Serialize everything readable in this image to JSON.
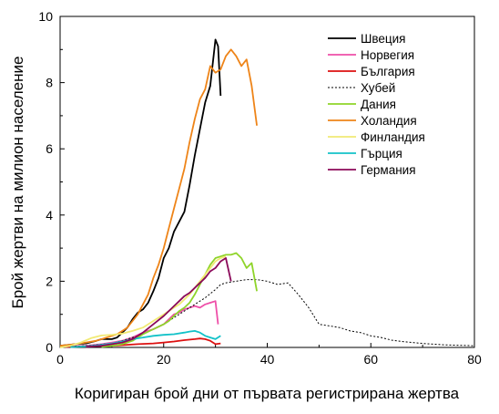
{
  "chart_data": {
    "type": "line",
    "xlabel": "Коригиран брой дни от първата регистрирана жертва",
    "ylabel": "Брой жертви на милион население",
    "xlim": [
      0,
      80
    ],
    "ylim": [
      0,
      10
    ],
    "xticks": [
      0,
      20,
      40,
      60,
      80
    ],
    "yticks": [
      0,
      2,
      4,
      6,
      8,
      10
    ],
    "grid": false,
    "legend": "top-right",
    "series": [
      {
        "name": "Швеция",
        "color": "#000000",
        "dash": "solid",
        "x": [
          0,
          3,
          5,
          7,
          8,
          10,
          11,
          12,
          13,
          14,
          15,
          16,
          17,
          18,
          19,
          20,
          21,
          22,
          23,
          24,
          25,
          26,
          27,
          28,
          29,
          30,
          30.5,
          31
        ],
        "y": [
          0.05,
          0.1,
          0.12,
          0.2,
          0.25,
          0.25,
          0.3,
          0.45,
          0.6,
          0.85,
          1.05,
          1.15,
          1.35,
          1.7,
          2.1,
          2.7,
          3.0,
          3.5,
          3.8,
          4.1,
          4.9,
          5.8,
          6.6,
          7.4,
          7.9,
          9.3,
          9.1,
          7.6
        ]
      },
      {
        "name": "Норвегия",
        "color": "#ee4fa8",
        "dash": "solid",
        "x": [
          1,
          5,
          8,
          10,
          12,
          14,
          16,
          18,
          20,
          21,
          22,
          23,
          24,
          25,
          26,
          27,
          28,
          29,
          30,
          30.5
        ],
        "y": [
          0.02,
          0.05,
          0.1,
          0.15,
          0.2,
          0.3,
          0.45,
          0.55,
          0.7,
          0.85,
          1.0,
          1.05,
          1.15,
          1.2,
          1.25,
          1.2,
          1.3,
          1.35,
          1.4,
          0.7
        ]
      },
      {
        "name": "България",
        "color": "#dd1111",
        "dash": "solid",
        "x": [
          1,
          5,
          10,
          13,
          15,
          18,
          20,
          22,
          24,
          26,
          27,
          28,
          29,
          30,
          31
        ],
        "y": [
          0.02,
          0.03,
          0.05,
          0.08,
          0.1,
          0.12,
          0.15,
          0.18,
          0.22,
          0.25,
          0.27,
          0.25,
          0.2,
          0.1,
          0.12
        ]
      },
      {
        "name": "Хубей",
        "color": "#000000",
        "dash": "dotted",
        "x": [
          0,
          5,
          10,
          12,
          14,
          16,
          18,
          20,
          22,
          24,
          26,
          28,
          30,
          31,
          32,
          34,
          36,
          38,
          40,
          42,
          44,
          46,
          48,
          50,
          52,
          54,
          56,
          58,
          60,
          62,
          64,
          66,
          68,
          70,
          72,
          74,
          76,
          78,
          80
        ],
        "y": [
          0.02,
          0.05,
          0.12,
          0.2,
          0.3,
          0.4,
          0.55,
          0.7,
          0.9,
          1.1,
          1.3,
          1.5,
          1.75,
          1.9,
          1.95,
          2.0,
          2.05,
          2.05,
          2.0,
          1.9,
          1.95,
          1.6,
          1.2,
          0.7,
          0.65,
          0.6,
          0.5,
          0.45,
          0.35,
          0.3,
          0.22,
          0.18,
          0.15,
          0.12,
          0.1,
          0.08,
          0.07,
          0.06,
          0.05
        ]
      },
      {
        "name": "Дания",
        "color": "#8fd42a",
        "dash": "solid",
        "x": [
          8,
          10,
          12,
          14,
          16,
          18,
          20,
          21,
          22,
          23,
          24,
          25,
          26,
          27,
          28,
          29,
          30,
          31,
          32,
          33,
          34,
          35,
          36,
          37,
          38
        ],
        "y": [
          0.02,
          0.05,
          0.1,
          0.2,
          0.4,
          0.55,
          0.7,
          0.8,
          0.95,
          1.1,
          1.2,
          1.35,
          1.6,
          1.9,
          2.2,
          2.5,
          2.7,
          2.75,
          2.8,
          2.8,
          2.85,
          2.7,
          2.4,
          2.55,
          1.7
        ]
      },
      {
        "name": "Холандия",
        "color": "#ee8418",
        "dash": "solid",
        "x": [
          0,
          3,
          5,
          7,
          9,
          10,
          11,
          12,
          13,
          14,
          15,
          16,
          17,
          18,
          19,
          20,
          21,
          22,
          23,
          24,
          25,
          26,
          27,
          28,
          29,
          30,
          31,
          32,
          33,
          34,
          35,
          36,
          37,
          38
        ],
        "y": [
          0.05,
          0.1,
          0.15,
          0.2,
          0.3,
          0.35,
          0.4,
          0.5,
          0.6,
          0.8,
          1.0,
          1.3,
          1.6,
          2.1,
          2.5,
          3.0,
          3.6,
          4.2,
          4.8,
          5.4,
          6.2,
          6.9,
          7.5,
          7.8,
          8.5,
          8.3,
          8.4,
          8.8,
          9.0,
          8.8,
          8.5,
          8.7,
          7.9,
          6.7
        ]
      },
      {
        "name": "Финландия",
        "color": "#f1ea74",
        "dash": "solid",
        "x": [
          0,
          2,
          4,
          6,
          8,
          10,
          11,
          12,
          14,
          16,
          18,
          20,
          22,
          23,
          24,
          25,
          26,
          27,
          28,
          29,
          30,
          31,
          32
        ],
        "y": [
          0.0,
          0.05,
          0.15,
          0.28,
          0.36,
          0.38,
          0.4,
          0.42,
          0.5,
          0.6,
          0.8,
          1.0,
          1.2,
          1.3,
          1.45,
          1.6,
          1.8,
          2.0,
          2.2,
          2.4,
          2.6,
          2.7,
          2.75
        ]
      },
      {
        "name": "Гърция",
        "color": "#12c2c8",
        "dash": "solid",
        "x": [
          2,
          5,
          8,
          10,
          12,
          14,
          16,
          18,
          20,
          22,
          24,
          25,
          26,
          27,
          28,
          29,
          30,
          31
        ],
        "y": [
          0.01,
          0.03,
          0.08,
          0.12,
          0.18,
          0.25,
          0.3,
          0.35,
          0.38,
          0.4,
          0.45,
          0.48,
          0.5,
          0.45,
          0.35,
          0.3,
          0.25,
          0.35
        ]
      },
      {
        "name": "Германия",
        "color": "#8b0a5a",
        "dash": "solid",
        "x": [
          5,
          8,
          10,
          12,
          14,
          16,
          18,
          20,
          21,
          22,
          23,
          24,
          25,
          26,
          27,
          28,
          29,
          30,
          31,
          32,
          33
        ],
        "y": [
          0.02,
          0.05,
          0.1,
          0.15,
          0.25,
          0.45,
          0.7,
          0.95,
          1.1,
          1.25,
          1.4,
          1.55,
          1.65,
          1.8,
          1.95,
          2.1,
          2.3,
          2.4,
          2.6,
          2.7,
          2.0
        ]
      }
    ]
  }
}
